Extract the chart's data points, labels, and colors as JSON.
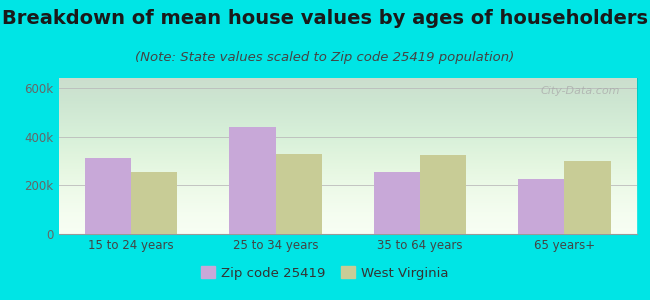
{
  "title": "Breakdown of mean house values by ages of householders",
  "subtitle": "(Note: State values scaled to Zip code 25419 population)",
  "categories": [
    "15 to 24 years",
    "25 to 34 years",
    "35 to 64 years",
    "65 years+"
  ],
  "zip_values": [
    310000,
    440000,
    255000,
    225000
  ],
  "wv_values": [
    255000,
    330000,
    325000,
    300000
  ],
  "zip_color": "#c8a8d8",
  "wv_color": "#c8cc96",
  "background_outer": "#00e5e5",
  "background_inner_top": "#e8f5e0",
  "background_inner_bottom": "#f8fff4",
  "ylim": [
    0,
    640000
  ],
  "yticks": [
    0,
    200000,
    400000,
    600000
  ],
  "ytick_labels": [
    "0",
    "200k",
    "400k",
    "600k"
  ],
  "legend_zip": "Zip code 25419",
  "legend_wv": "West Virginia",
  "bar_width": 0.32,
  "title_fontsize": 14,
  "subtitle_fontsize": 9.5,
  "watermark": "City-Data.com"
}
